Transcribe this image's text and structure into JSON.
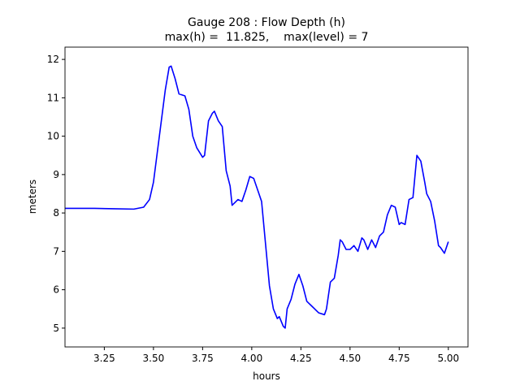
{
  "chart_data": {
    "type": "line",
    "title": [
      "Gauge 208 : Flow Depth (h)",
      "max(h) =  11.825,    max(level) = 7"
    ],
    "xlabel": "hours",
    "ylabel": "meters",
    "color": "#0000ff",
    "x": [
      3.05,
      3.1,
      3.2,
      3.3,
      3.4,
      3.45,
      3.48,
      3.5,
      3.53,
      3.56,
      3.58,
      3.59,
      3.61,
      3.63,
      3.66,
      3.68,
      3.7,
      3.72,
      3.75,
      3.76,
      3.78,
      3.8,
      3.81,
      3.83,
      3.85,
      3.87,
      3.89,
      3.9,
      3.93,
      3.95,
      3.97,
      3.99,
      4.01,
      4.03,
      4.05,
      4.07,
      4.09,
      4.11,
      4.13,
      4.14,
      4.16,
      4.17,
      4.18,
      4.2,
      4.22,
      4.24,
      4.26,
      4.28,
      4.3,
      4.32,
      4.34,
      4.37,
      4.38,
      4.4,
      4.42,
      4.44,
      4.45,
      4.46,
      4.48,
      4.5,
      4.52,
      4.54,
      4.56,
      4.57,
      4.59,
      4.61,
      4.63,
      4.65,
      4.67,
      4.69,
      4.71,
      4.73,
      4.75,
      4.76,
      4.78,
      4.8,
      4.82,
      4.84,
      4.86,
      4.88,
      4.89,
      4.91,
      4.93,
      4.95,
      4.96,
      4.98,
      5.0
    ],
    "values": [
      8.12,
      8.12,
      8.12,
      8.11,
      8.1,
      8.15,
      8.35,
      8.8,
      10.0,
      11.2,
      11.8,
      11.825,
      11.5,
      11.1,
      11.05,
      10.7,
      10.0,
      9.7,
      9.45,
      9.5,
      10.4,
      10.6,
      10.65,
      10.4,
      10.25,
      9.1,
      8.7,
      8.2,
      8.35,
      8.3,
      8.6,
      8.95,
      8.9,
      8.6,
      8.3,
      7.2,
      6.1,
      5.5,
      5.25,
      5.3,
      5.05,
      5.0,
      5.5,
      5.75,
      6.15,
      6.4,
      6.1,
      5.7,
      5.6,
      5.5,
      5.4,
      5.35,
      5.5,
      6.2,
      6.3,
      6.9,
      7.3,
      7.25,
      7.05,
      7.05,
      7.15,
      7.0,
      7.35,
      7.3,
      7.05,
      7.3,
      7.1,
      7.4,
      7.5,
      7.95,
      8.2,
      8.15,
      7.7,
      7.75,
      7.7,
      8.35,
      8.4,
      9.5,
      9.35,
      8.8,
      8.5,
      8.3,
      7.8,
      7.15,
      7.1,
      6.95,
      7.25
    ],
    "xlim": [
      3.05,
      5.1
    ],
    "xticks": [
      {
        "value": 3.25,
        "label": "3.25"
      },
      {
        "value": 3.5,
        "label": "3.50"
      },
      {
        "value": 3.75,
        "label": "3.75"
      },
      {
        "value": 4.0,
        "label": "4.00"
      },
      {
        "value": 4.25,
        "label": "4.25"
      },
      {
        "value": 4.5,
        "label": "4.50"
      },
      {
        "value": 4.75,
        "label": "4.75"
      },
      {
        "value": 5.0,
        "label": "5.00"
      }
    ],
    "ylim": [
      4.51,
      12.32
    ],
    "yticks": [
      5,
      6,
      7,
      8,
      9,
      10,
      11,
      12
    ]
  }
}
